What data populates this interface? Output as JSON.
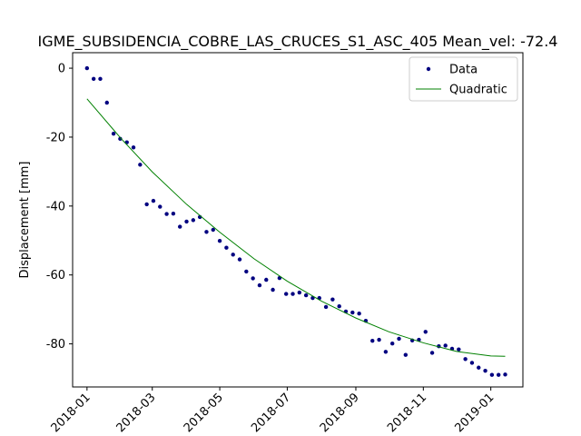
{
  "chart_data": {
    "type": "scatter",
    "title": "IGME_SUBSIDENCIA_COBRE_LAS_CRUCES_S1_ASC_405     Mean_vel: -72.4",
    "xlabel": "",
    "ylabel": "Displacement [mm]",
    "xlim": [
      "2017-12-19",
      "2019-01-30"
    ],
    "ylim": [
      -92.5,
      4.5
    ],
    "x_ticks": [
      "2018-01",
      "2018-03",
      "2018-05",
      "2018-07",
      "2018-09",
      "2018-11",
      "2019-01"
    ],
    "y_ticks": [
      0,
      -20,
      -40,
      -60,
      -80
    ],
    "grid": false,
    "legend": {
      "position": "top-right",
      "entries": [
        "Data",
        "Quadratic"
      ]
    },
    "series": [
      {
        "name": "Data",
        "kind": "scatter",
        "color": "#000080",
        "x": [
          "2018-01-01",
          "2018-01-07",
          "2018-01-13",
          "2018-01-19",
          "2018-01-25",
          "2018-01-31",
          "2018-02-06",
          "2018-02-12",
          "2018-02-18",
          "2018-02-24",
          "2018-03-02",
          "2018-03-08",
          "2018-03-14",
          "2018-03-20",
          "2018-03-26",
          "2018-04-01",
          "2018-04-07",
          "2018-04-13",
          "2018-04-19",
          "2018-04-25",
          "2018-05-01",
          "2018-05-07",
          "2018-05-13",
          "2018-05-19",
          "2018-05-25",
          "2018-05-31",
          "2018-06-06",
          "2018-06-12",
          "2018-06-18",
          "2018-06-24",
          "2018-06-30",
          "2018-07-06",
          "2018-07-12",
          "2018-07-18",
          "2018-07-24",
          "2018-07-30",
          "2018-08-05",
          "2018-08-11",
          "2018-08-17",
          "2018-08-23",
          "2018-08-29",
          "2018-09-04",
          "2018-09-10",
          "2018-09-16",
          "2018-09-22",
          "2018-09-28",
          "2018-10-04",
          "2018-10-10",
          "2018-10-16",
          "2018-10-22",
          "2018-10-28",
          "2018-11-03",
          "2018-11-09",
          "2018-11-15",
          "2018-11-21",
          "2018-11-27",
          "2018-12-03",
          "2018-12-09",
          "2018-12-15",
          "2018-12-21",
          "2018-12-27",
          "2019-01-02",
          "2019-01-08",
          "2019-01-14"
        ],
        "y": [
          0,
          -3.1,
          -3.1,
          -10,
          -19,
          -20.5,
          -21.5,
          -23,
          -28,
          -39.5,
          -38.5,
          -40.2,
          -42.3,
          -42.2,
          -46,
          -44.5,
          -44.1,
          -43.2,
          -47.5,
          -46.9,
          -50.1,
          -52.1,
          -54.1,
          -55.5,
          -59,
          -61,
          -63,
          -61.4,
          -64.3,
          -60.9,
          -65.5,
          -65.5,
          -65.1,
          -65.9,
          -66.7,
          -66.7,
          -69.3,
          -67.1,
          -69.1,
          -70.6,
          -70.9,
          -71.2,
          -73.3,
          -79.1,
          -78.8,
          -82.3,
          -79.9,
          -78.5,
          -83.2,
          -79,
          -78.8,
          -76.5,
          -82.6,
          -80.7,
          -80.5,
          -81.4,
          -81.6,
          -84.4,
          -85.5,
          -86.9,
          -87.8,
          -89,
          -89,
          -88.9
        ]
      },
      {
        "name": "Quadratic",
        "kind": "line",
        "color": "#008000",
        "x": [
          "2018-01-01",
          "2018-02-01",
          "2018-03-01",
          "2018-04-01",
          "2018-05-01",
          "2018-06-01",
          "2018-07-01",
          "2018-08-01",
          "2018-09-01",
          "2018-10-01",
          "2018-11-01",
          "2018-12-01",
          "2019-01-01",
          "2019-01-14"
        ],
        "y": [
          -8.9,
          -20.5,
          -30.1,
          -39.5,
          -47.6,
          -55.3,
          -61.8,
          -67.6,
          -72.5,
          -76.5,
          -79.7,
          -82.2,
          -83.5,
          -83.6
        ]
      }
    ]
  }
}
